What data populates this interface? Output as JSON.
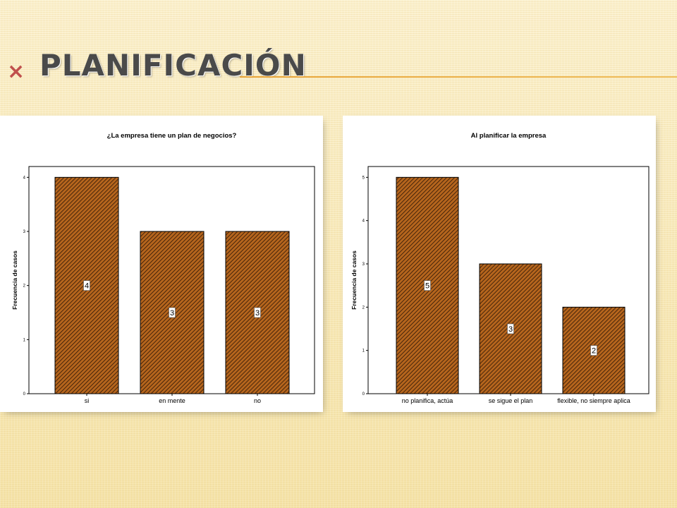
{
  "slide": {
    "title": "PLANIFICACIÓN",
    "title_mark": "×"
  },
  "colors": {
    "bar_fill": "#b5651d",
    "hatch": "#2b1506",
    "accent_line": "#e9a53a"
  },
  "chart_data": [
    {
      "type": "bar",
      "title": "¿La empresa tiene un plan de negocios?",
      "ylabel": "Frecuencia de casos",
      "xlabel": "",
      "categories": [
        "si",
        "en mente",
        "no"
      ],
      "values": [
        4,
        3,
        3
      ],
      "data_labels": [
        "4",
        "3",
        "3"
      ],
      "yticks": [
        "0",
        "1",
        "2",
        "3",
        "4"
      ],
      "ylim": [
        0,
        4.2
      ],
      "grid": false,
      "legend": "none"
    },
    {
      "type": "bar",
      "title": "Al planificar la empresa",
      "ylabel": "Frecuencia de casos",
      "xlabel": "",
      "categories": [
        "no planifica, actúa",
        "se sigue el plan",
        "flexible, no siempre aplica"
      ],
      "values": [
        5,
        3,
        2
      ],
      "data_labels": [
        "5",
        "3",
        "2"
      ],
      "yticks": [
        "0",
        "1",
        "2",
        "3",
        "4",
        "5"
      ],
      "ylim": [
        0,
        5.25
      ],
      "grid": false,
      "legend": "none"
    }
  ]
}
